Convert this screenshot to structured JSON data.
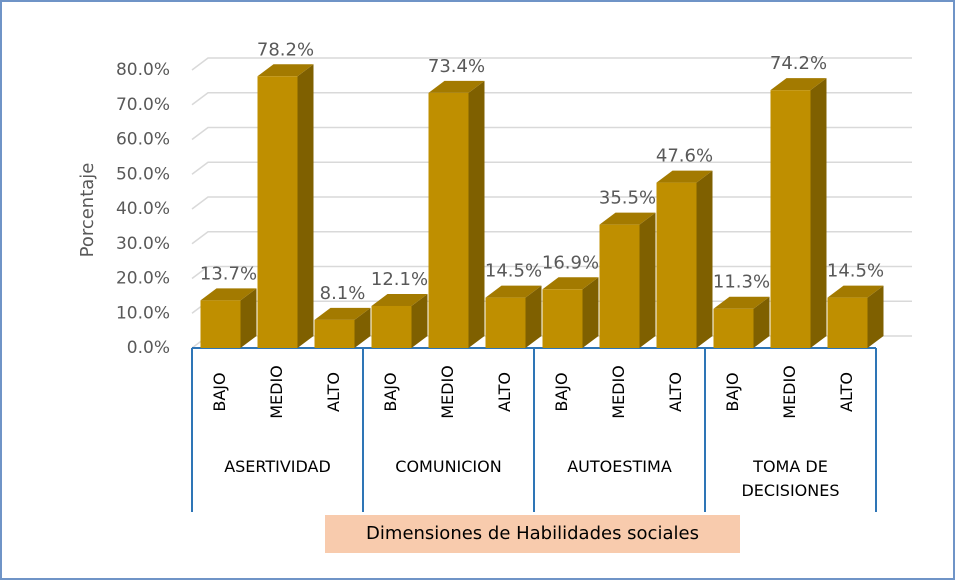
{
  "chart_data": {
    "type": "bar3d",
    "y_axis_label": "Porcentaje",
    "x_axis_label": "Dimensiones de Habilidades sociales",
    "categories": [
      "BAJO",
      "MEDIO",
      "ALTO",
      "BAJO",
      "MEDIO",
      "ALTO",
      "BAJO",
      "MEDIO",
      "ALTO",
      "BAJO",
      "MEDIO",
      "ALTO"
    ],
    "groups": [
      "ASERTIVIDAD",
      "COMUNICION",
      "AUTOESTIMA",
      "TOMA DE DECISIONES"
    ],
    "values": [
      13.7,
      78.2,
      8.1,
      12.1,
      73.4,
      14.5,
      16.9,
      35.5,
      47.6,
      11.3,
      74.2,
      14.5
    ],
    "value_labels": [
      "13.7%",
      "78.2%",
      "8.1%",
      "12.1%",
      "73.4%",
      "14.5%",
      "16.9%",
      "35.5%",
      "47.6%",
      "11.3%",
      "74.2%",
      "14.5%"
    ],
    "color": "#bf8f00",
    "ylim": [
      0,
      80
    ],
    "yticks": [
      {
        "value": 0,
        "label": "0.0%"
      },
      {
        "value": 10,
        "label": "10.0%"
      },
      {
        "value": 20,
        "label": "20.0%"
      },
      {
        "value": 30,
        "label": "30.0%"
      },
      {
        "value": 40,
        "label": "40.0%"
      },
      {
        "value": 50,
        "label": "50.0%"
      },
      {
        "value": 60,
        "label": "60.0%"
      },
      {
        "value": 70,
        "label": "70.0%"
      },
      {
        "value": 80,
        "label": "80.0%"
      }
    ],
    "grid": true
  }
}
